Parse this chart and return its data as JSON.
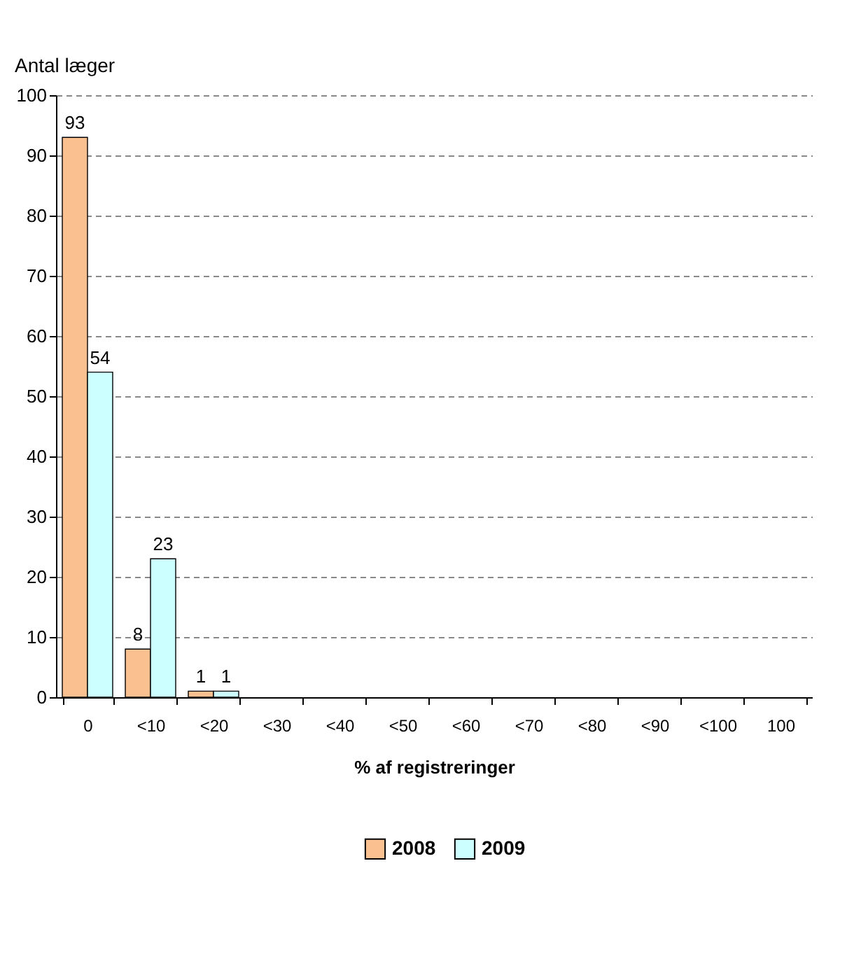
{
  "chart_data": {
    "type": "bar",
    "xlabel": "% af registreringer",
    "ylabel": "Antal læger",
    "categories": [
      "0",
      "<10",
      "<20",
      "<30",
      "<40",
      "<50",
      "<60",
      "<70",
      "<80",
      "<90",
      "<100",
      "100"
    ],
    "series": [
      {
        "name": "2008",
        "color": "#fac090",
        "values": [
          93,
          8,
          1,
          0,
          0,
          0,
          0,
          0,
          0,
          0,
          0,
          0
        ],
        "value_labels": [
          "93",
          "8",
          "1",
          null,
          null,
          null,
          null,
          null,
          null,
          null,
          null,
          null
        ]
      },
      {
        "name": "2009",
        "color": "#ccffff",
        "values": [
          54,
          23,
          1,
          0,
          0,
          0,
          0,
          0,
          0,
          0,
          0,
          0
        ],
        "value_labels": [
          "54",
          "23",
          "1",
          null,
          null,
          null,
          null,
          null,
          null,
          null,
          null,
          null
        ]
      }
    ],
    "ylim": [
      0,
      100
    ],
    "yticks": [
      0,
      10,
      20,
      30,
      40,
      50,
      60,
      70,
      80,
      90,
      100
    ],
    "grid": "y",
    "legend": "bottom"
  }
}
